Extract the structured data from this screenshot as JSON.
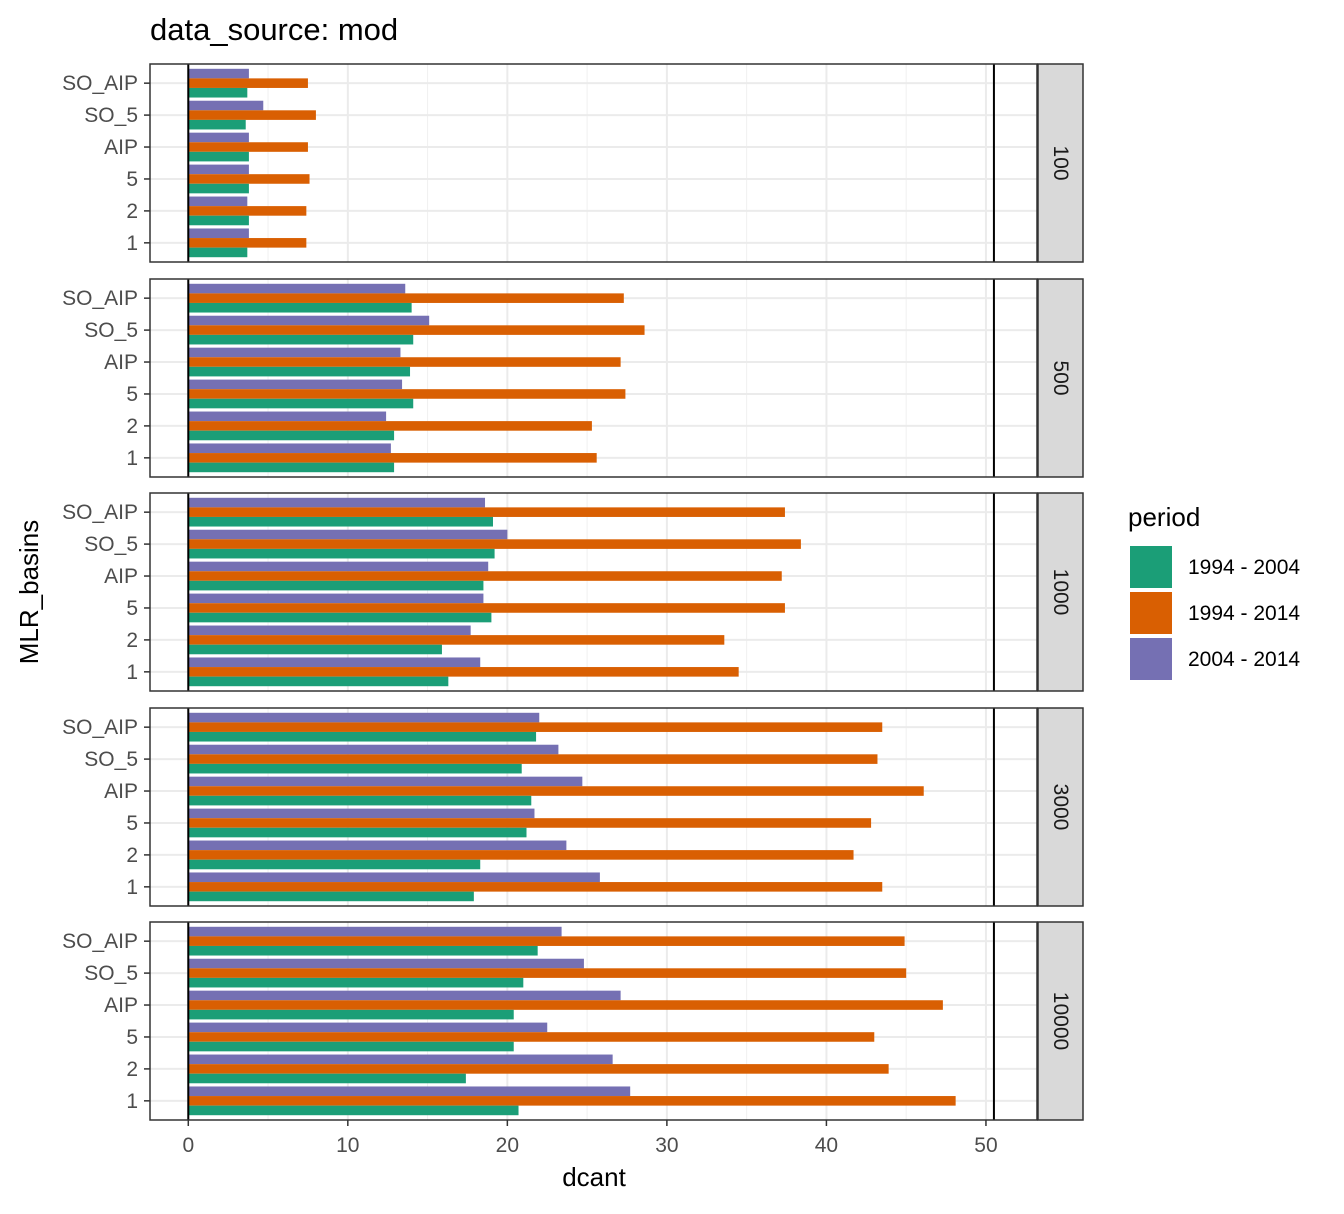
{
  "chart_data": {
    "type": "bar",
    "orientation": "horizontal",
    "title": "data_source: mod",
    "xlabel": "dcant",
    "ylabel": "MLR_basins",
    "xlim": [
      -2.4,
      53.2
    ],
    "x_ticks": [
      0,
      10,
      20,
      30,
      40,
      50
    ],
    "x_tick_labels": [
      "0",
      "10",
      "20",
      "30",
      "40",
      "50"
    ],
    "x_reference_lines": [
      0,
      50.5
    ],
    "grid": true,
    "categories": [
      "SO_AIP",
      "SO_5",
      "AIP",
      "5",
      "2",
      "1"
    ],
    "legend": {
      "title": "period",
      "position": "right",
      "entries": [
        "1994 - 2004",
        "1994 - 2014",
        "2004 - 2014"
      ]
    },
    "colors": {
      "1994 - 2004": "#1b9e77",
      "1994 - 2014": "#d95f02",
      "2004 - 2014": "#7570b3"
    },
    "facets": [
      {
        "label": "100",
        "series": [
          {
            "name": "1994 - 2004",
            "values": [
              3.7,
              3.6,
              3.8,
              3.8,
              3.8,
              3.7
            ]
          },
          {
            "name": "1994 - 2014",
            "values": [
              7.5,
              8.0,
              7.5,
              7.6,
              7.4,
              7.4
            ]
          },
          {
            "name": "2004 - 2014",
            "values": [
              3.8,
              4.7,
              3.8,
              3.8,
              3.7,
              3.8
            ]
          }
        ]
      },
      {
        "label": "500",
        "series": [
          {
            "name": "1994 - 2004",
            "values": [
              14.0,
              14.1,
              13.9,
              14.1,
              12.9,
              12.9
            ]
          },
          {
            "name": "1994 - 2014",
            "values": [
              27.3,
              28.6,
              27.1,
              27.4,
              25.3,
              25.6
            ]
          },
          {
            "name": "2004 - 2014",
            "values": [
              13.6,
              15.1,
              13.3,
              13.4,
              12.4,
              12.7
            ]
          }
        ]
      },
      {
        "label": "1000",
        "series": [
          {
            "name": "1994 - 2004",
            "values": [
              19.1,
              19.2,
              18.5,
              19.0,
              15.9,
              16.3
            ]
          },
          {
            "name": "1994 - 2014",
            "values": [
              37.4,
              38.4,
              37.2,
              37.4,
              33.6,
              34.5
            ]
          },
          {
            "name": "2004 - 2014",
            "values": [
              18.6,
              20.0,
              18.8,
              18.5,
              17.7,
              18.3
            ]
          }
        ]
      },
      {
        "label": "3000",
        "series": [
          {
            "name": "1994 - 2004",
            "values": [
              21.8,
              20.9,
              21.5,
              21.2,
              18.3,
              17.9
            ]
          },
          {
            "name": "1994 - 2014",
            "values": [
              43.5,
              43.2,
              46.1,
              42.8,
              41.7,
              43.5
            ]
          },
          {
            "name": "2004 - 2014",
            "values": [
              22.0,
              23.2,
              24.7,
              21.7,
              23.7,
              25.8
            ]
          }
        ]
      },
      {
        "label": "10000",
        "series": [
          {
            "name": "1994 - 2004",
            "values": [
              21.9,
              21.0,
              20.4,
              20.4,
              17.4,
              20.7
            ]
          },
          {
            "name": "1994 - 2014",
            "values": [
              44.9,
              45.0,
              47.3,
              43.0,
              43.9,
              48.1
            ]
          },
          {
            "name": "2004 - 2014",
            "values": [
              23.4,
              24.8,
              27.1,
              22.5,
              26.6,
              27.7
            ]
          }
        ]
      }
    ]
  }
}
